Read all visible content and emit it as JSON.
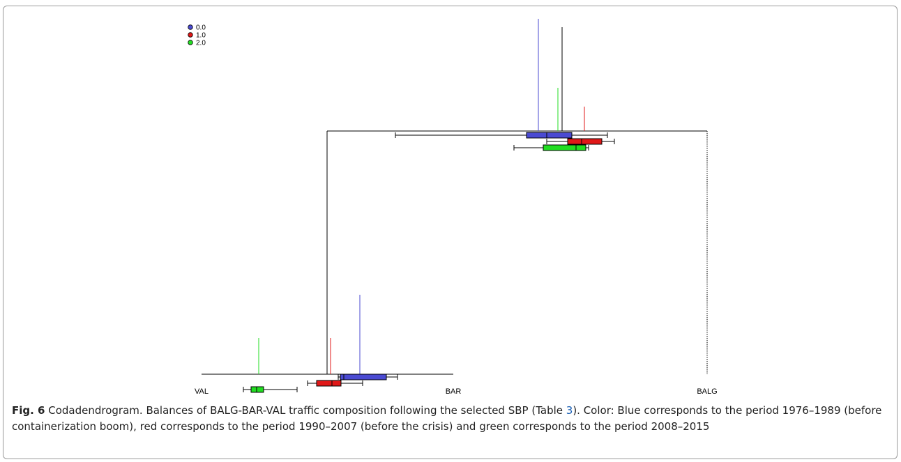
{
  "legend": [
    {
      "label": "0.0",
      "color": "#4a4ad2"
    },
    {
      "label": "1.0",
      "color": "#e01818"
    },
    {
      "label": "2.0",
      "color": "#22dd22"
    }
  ],
  "leaves": [
    "VAL",
    "BAR",
    "BALG"
  ],
  "caption": {
    "label": "Fig. 6",
    "text_before": " Codadendrogram. Balances of BALG-BAR-VAL traffic composition following the selected SBP (Table ",
    "table_ref": "3",
    "text_after": "). Color: Blue corresponds to the period 1976–1989 (before containerization boom), red corresponds to the period 1990–2007 (before the crisis) and green corresponds to the period 2008–2015"
  },
  "chart_data": {
    "type": "dendrogram",
    "leaves": [
      "VAL",
      "BAR",
      "BALG"
    ],
    "groups": [
      "0.0",
      "1.0",
      "2.0"
    ],
    "group_colors": {
      "0.0": "#4a4ad2",
      "1.0": "#e01818",
      "2.0": "#22dd22"
    },
    "legend_position": "top-left",
    "nodes": [
      "BALG vs (BAR,VAL)",
      "BAR vs VAL"
    ]
  }
}
